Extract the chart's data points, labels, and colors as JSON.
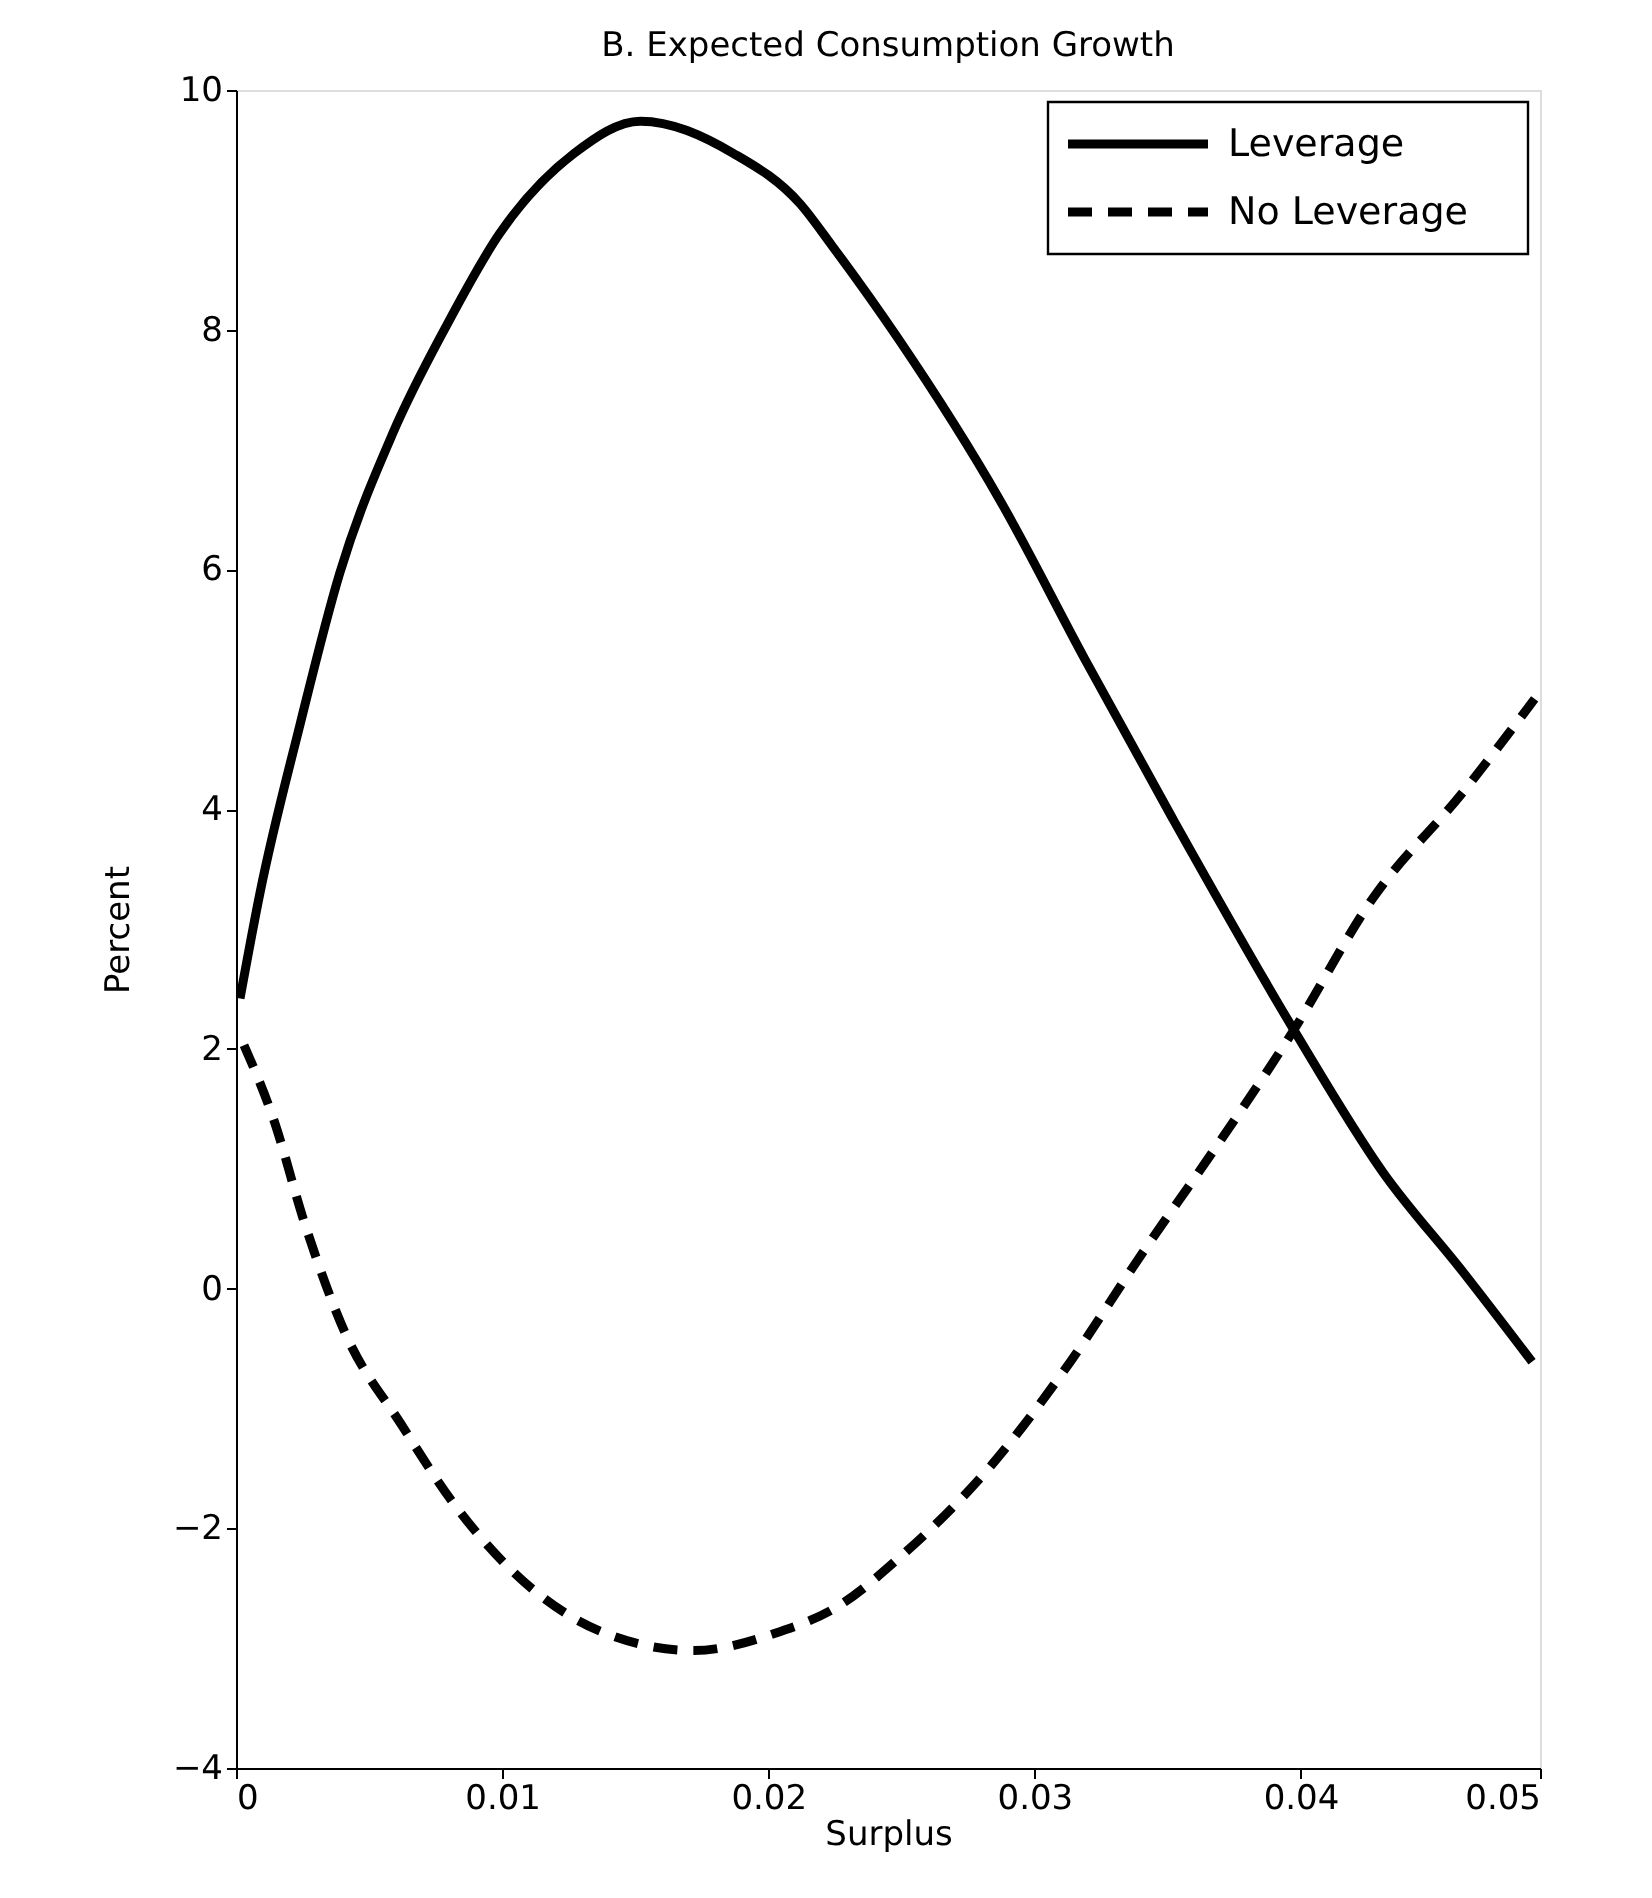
{
  "chart_data": {
    "type": "line",
    "title": "B. Expected Consumption Growth",
    "xlabel": "Surplus",
    "ylabel": "Percent",
    "xlim": [
      0,
      0.049
    ],
    "xticks": [
      0,
      0.01,
      0.02,
      0.03,
      0.04,
      {
        "value": 0.049,
        "label": "0.05"
      }
    ],
    "ylim": [
      -4,
      10
    ],
    "yticks": [
      -4,
      -2,
      0,
      2,
      4,
      6,
      8,
      10
    ],
    "grid": false,
    "legend": "top right",
    "series": [
      {
        "name": "Leverage",
        "color": "#000000",
        "line_style": "solid",
        "x": [
          0.00015,
          0.0009,
          0.0024,
          0.0039,
          0.0059,
          0.0079,
          0.0099,
          0.0127,
          0.0152,
          0.0187,
          0.0212,
          0.0224,
          0.0249,
          0.0287,
          0.0319,
          0.0352,
          0.0398,
          0.0431,
          0.0461,
          0.0487
        ],
        "values": [
          2.42,
          3.3,
          4.7,
          5.97,
          7.14,
          8.03,
          8.8,
          9.47,
          9.74,
          9.47,
          9.05,
          8.7,
          7.92,
          6.58,
          5.25,
          3.92,
          2.14,
          0.97,
          0.14,
          -0.61
        ]
      },
      {
        "name": "No Leverage",
        "color": "#000000",
        "line_style": "dashed",
        "x": [
          0.0003,
          0.0014,
          0.0026,
          0.0041,
          0.0062,
          0.0082,
          0.0104,
          0.0137,
          0.0172,
          0.0202,
          0.0227,
          0.0249,
          0.0284,
          0.0311,
          0.0341,
          0.0367,
          0.0397,
          0.0427,
          0.0461,
          0.0488
        ],
        "values": [
          2.03,
          1.42,
          0.53,
          -0.37,
          -1.13,
          -1.8,
          -2.36,
          -2.86,
          -3.02,
          -2.88,
          -2.64,
          -2.25,
          -1.47,
          -0.69,
          0.31,
          1.14,
          2.14,
          3.25,
          4.14,
          4.92
        ]
      }
    ]
  }
}
